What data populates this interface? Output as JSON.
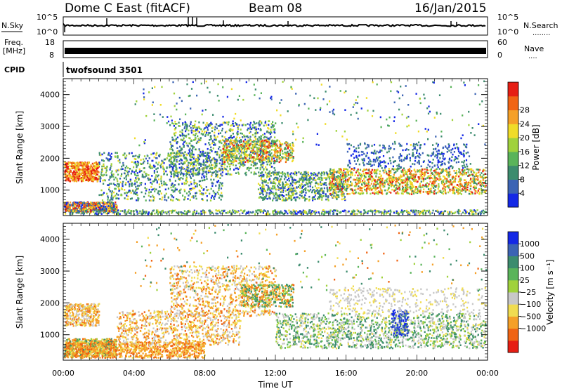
{
  "header": {
    "station": "Dome C East (fitACF)",
    "beam": "Beam 08",
    "date": "16/Jan/2015"
  },
  "labels": {
    "nsky": "N.Sky",
    "nsearch": "N.Search",
    "nsearch_dots": "........",
    "freq_line1": "Freq.",
    "freq_line2": "[MHz]",
    "nave": "Nave",
    "nave_dots": "....",
    "cpid": "CPID",
    "cpid_value": "twofsound 3501"
  },
  "colors": {
    "power_scale": [
      "#1428e6",
      "#3c64b4",
      "#3c8c6e",
      "#5ab45a",
      "#a0d23c",
      "#f0dc28",
      "#f5a028",
      "#f06414",
      "#e61e14"
    ],
    "velocity_scale": [
      "#e61e14",
      "#f06414",
      "#f5a028",
      "#f0dc50",
      "#c8c8c8",
      "#a0d23c",
      "#5ab45a",
      "#3c8c6e",
      "#3c64b4",
      "#1428e6"
    ]
  },
  "chart_data": [
    {
      "type": "line",
      "name": "noise-panel",
      "left_ticks": [
        "10^5",
        "10^0"
      ],
      "right_ticks": [
        "10^5",
        "10^0"
      ]
    },
    {
      "type": "line",
      "name": "freq-nave-panel",
      "left_ticks": [
        "18",
        "8"
      ],
      "right_ticks": [
        "60",
        "0"
      ]
    },
    {
      "type": "heatmap",
      "name": "power",
      "ylabel": "Slant Range [km]",
      "yticks": [
        "1000",
        "2000",
        "3000",
        "4000"
      ],
      "ylim": [
        200,
        4500
      ],
      "xlim": [
        0,
        24
      ],
      "colorbar_label": "Power [dB]",
      "colorbar_ticks": [
        "4",
        "8",
        "12",
        "16",
        "20",
        "24",
        "28"
      ]
    },
    {
      "type": "heatmap",
      "name": "velocity",
      "ylabel": "Slant Range [km]",
      "yticks": [
        "1000",
        "2000",
        "3000",
        "4000"
      ],
      "ylim": [
        200,
        4500
      ],
      "xlim": [
        0,
        24
      ],
      "colorbar_label": "Velocity [m s⁻¹]",
      "colorbar_ticks": [
        "1000",
        "500",
        "100",
        "25",
        "−25",
        "−100",
        "−500",
        "−1000"
      ]
    }
  ],
  "x_axis": {
    "ticks": [
      "00:00",
      "04:00",
      "08:00",
      "12:00",
      "16:00",
      "20:00",
      "00:00"
    ],
    "label": "Time UT"
  }
}
